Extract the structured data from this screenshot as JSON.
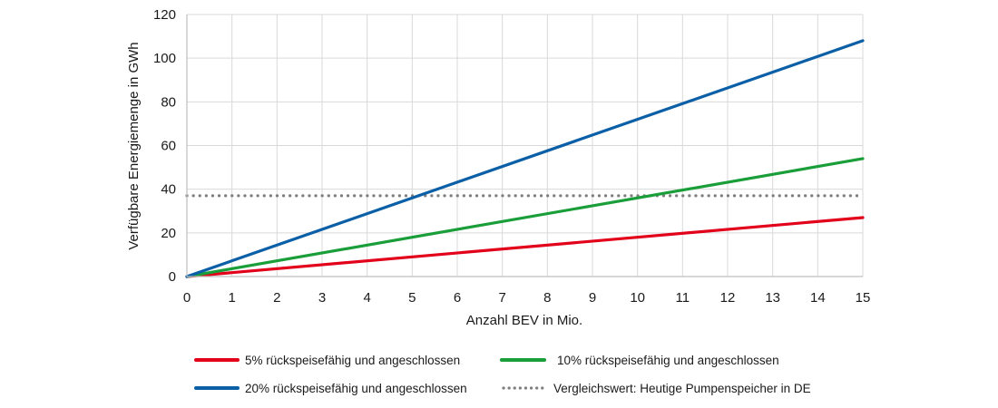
{
  "chart_data": {
    "type": "line",
    "title": "",
    "xlabel": "Anzahl BEV in Mio.",
    "ylabel": "Verfügbare Energiemenge in GWh",
    "xlim": [
      0,
      15
    ],
    "ylim": [
      0,
      120
    ],
    "x_ticks": [
      "0",
      "1",
      "2",
      "3",
      "4",
      "5",
      "6",
      "7",
      "8",
      "9",
      "10",
      "11",
      "12",
      "13",
      "14",
      "15"
    ],
    "y_ticks": [
      "0",
      "20",
      "40",
      "60",
      "80",
      "100",
      "120"
    ],
    "grid": true,
    "legend_position": "bottom",
    "series": [
      {
        "name": "5% rückspeisefähig und angeschlossen",
        "color": "#e2001a",
        "style": "solid",
        "x": [
          0,
          15
        ],
        "y": [
          0,
          27
        ]
      },
      {
        "name": "10% rückspeisefähig und angeschlossen",
        "color": "#1a9e3a",
        "style": "solid",
        "x": [
          0,
          15
        ],
        "y": [
          0,
          54
        ]
      },
      {
        "name": "20% rückspeisefähig und angeschlossen",
        "color": "#0a5fa6",
        "style": "solid",
        "x": [
          0,
          15
        ],
        "y": [
          0,
          108
        ]
      },
      {
        "name": "Vergleichswert: Heutige Pumpenspeicher in DE",
        "color": "#7f7f7f",
        "style": "dotted",
        "x": [
          0,
          15
        ],
        "y": [
          37,
          37
        ]
      }
    ]
  }
}
